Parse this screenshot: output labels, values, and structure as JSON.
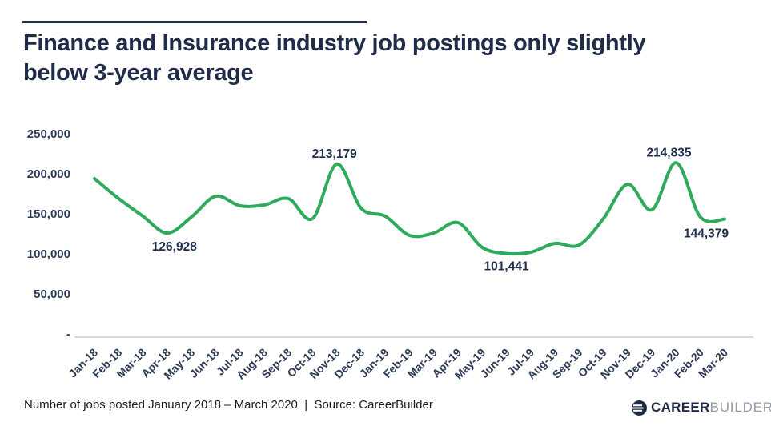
{
  "title": {
    "line1": "Finance and Insurance industry job postings only slightly",
    "line2": "below 3-year average"
  },
  "footer": {
    "caption": "Number of jobs posted January 2018 – March 2020  |  Source: CareerBuilder"
  },
  "logo": {
    "part1": "CAREER",
    "part2": "BUILDER",
    "reg": "®"
  },
  "colors": {
    "navy": "#1f2b47",
    "line_green": "#2daa5a",
    "axis_text": "#2c3a54",
    "baseline_gray": "#d8d8d8"
  },
  "chart_data": {
    "type": "line",
    "title": "Finance and Insurance industry job postings only slightly below 3-year average",
    "xlabel": "",
    "ylabel": "",
    "grid": false,
    "legend": false,
    "ylim": [
      0,
      250000
    ],
    "x": [
      "Jan-18",
      "Feb-18",
      "Mar-18",
      "Apr-18",
      "May-18",
      "Jun-18",
      "Jul-18",
      "Aug-18",
      "Sep-18",
      "Oct-18",
      "Nov-18",
      "Dec-18",
      "Jan-19",
      "Feb-19",
      "Mar-19",
      "Apr-19",
      "May-19",
      "Jun-19",
      "Jul-19",
      "Aug-19",
      "Sep-19",
      "Oct-19",
      "Nov-19",
      "Dec-19",
      "Jan-20",
      "Feb-20",
      "Mar-20"
    ],
    "series": [
      {
        "name": "Number of jobs posted",
        "values": [
          195000,
          170000,
          148000,
          126928,
          147000,
          173000,
          161000,
          162000,
          170000,
          145000,
          213179,
          158000,
          148000,
          124000,
          127000,
          140000,
          109000,
          101441,
          103000,
          114000,
          112000,
          145000,
          188000,
          156000,
          214835,
          147000,
          144379
        ]
      }
    ],
    "y_ticks": [
      {
        "label": "250,000",
        "value": 250000
      },
      {
        "label": "200,000",
        "value": 200000
      },
      {
        "label": "150,000",
        "value": 150000
      },
      {
        "label": "100,000",
        "value": 100000
      },
      {
        "label": "50,000",
        "value": 50000
      },
      {
        "label": "-",
        "value": 0
      }
    ],
    "annotations": [
      {
        "month": "Apr-18",
        "value": 126928,
        "label": "126,928",
        "offset": [
          9,
          18
        ]
      },
      {
        "month": "Nov-18",
        "value": 213179,
        "label": "213,179",
        "offset": [
          -3,
          -12
        ]
      },
      {
        "month": "Jun-19",
        "value": 101441,
        "label": "101,441",
        "offset": [
          0,
          17
        ]
      },
      {
        "month": "Jan-20",
        "value": 214835,
        "label": "214,835",
        "offset": [
          -9,
          -12
        ]
      },
      {
        "month": "Mar-20",
        "value": 144379,
        "label": "144,379",
        "offset": [
          -23,
          19
        ]
      }
    ]
  }
}
